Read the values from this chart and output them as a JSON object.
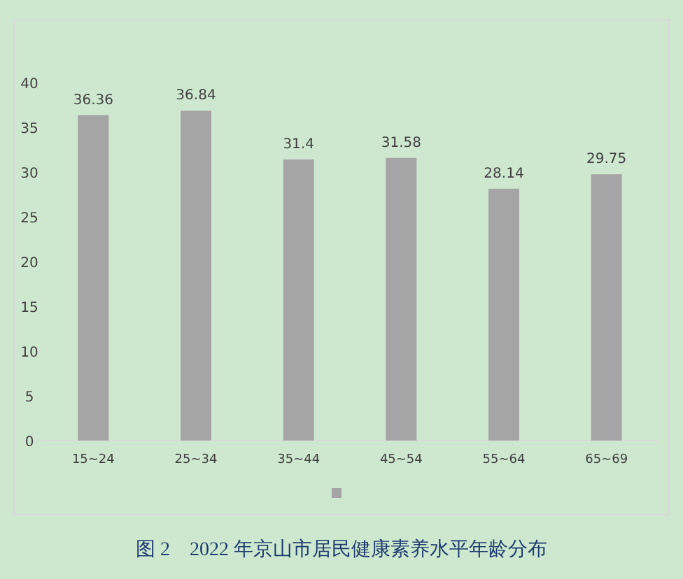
{
  "chart_data": {
    "type": "bar",
    "title": "图 2　2022 年京山市居民健康素养水平年龄分布",
    "categories": [
      "15~24",
      "25~34",
      "35~44",
      "45~54",
      "55~64",
      "65~69"
    ],
    "series": [
      {
        "color": "#a5a5a5",
        "values": [
          36.36,
          36.84,
          31.4,
          31.58,
          28.14,
          29.75
        ]
      }
    ],
    "ylim": [
      0,
      40
    ],
    "yticks": [
      0,
      5,
      10,
      15,
      20,
      25,
      30,
      35,
      40
    ],
    "data_labels": true,
    "grid": false
  }
}
